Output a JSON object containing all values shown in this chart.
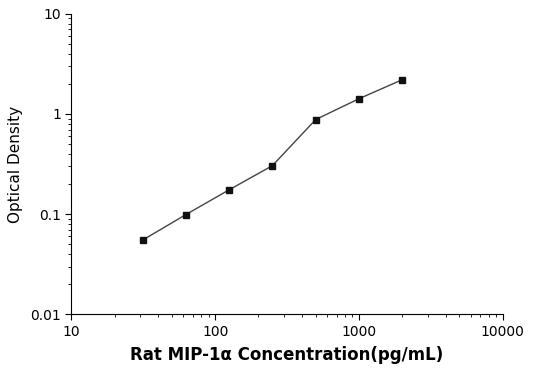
{
  "x": [
    31.25,
    62.5,
    125,
    250,
    500,
    1000,
    2000
  ],
  "y": [
    0.055,
    0.099,
    0.175,
    0.305,
    0.88,
    1.42,
    2.2
  ],
  "xlabel": "Rat MIP-1α Concentration(pg/mL)",
  "ylabel": "Optical Density",
  "xlim": [
    10,
    10000
  ],
  "ylim": [
    0.01,
    10
  ],
  "xticks": [
    10,
    100,
    1000,
    10000
  ],
  "xtick_labels": [
    "10",
    "100",
    "1000",
    "10000"
  ],
  "yticks": [
    0.01,
    0.1,
    1,
    10
  ],
  "ytick_labels": [
    "0.01",
    "0.1",
    "1",
    "10"
  ],
  "line_color": "#444444",
  "marker_color": "#111111",
  "marker": "s",
  "marker_size": 5,
  "line_width": 1.0,
  "background_color": "#ffffff",
  "xlabel_fontsize": 12,
  "ylabel_fontsize": 11,
  "tick_fontsize": 10
}
